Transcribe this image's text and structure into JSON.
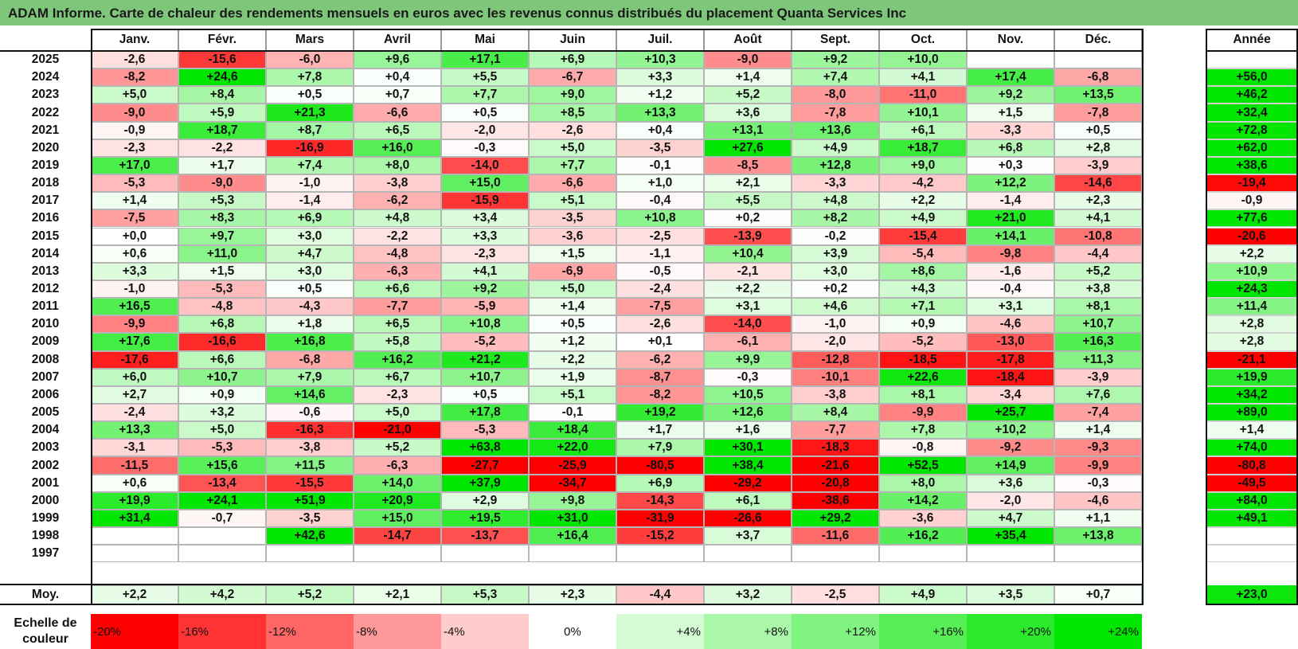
{
  "title": "ADAM Informe. Carte de chaleur des rendements mensuels en euros avec les revenus connus distribués du placement Quanta Services Inc",
  "chart_data": {
    "type": "heatmap",
    "title": "ADAM Informe. Carte de chaleur des rendements mensuels en euros avec les revenus connus distribués du placement Quanta Services Inc",
    "columns": [
      "Janv.",
      "Févr.",
      "Mars",
      "Avril",
      "Mai",
      "Juin",
      "Juil.",
      "Août",
      "Sept.",
      "Oct.",
      "Nov.",
      "Déc."
    ],
    "annual_header": "Année",
    "rows": [
      {
        "year": "2025",
        "values": [
          "-2,6",
          "-15,6",
          "-6,0",
          "+9,6",
          "+17,1",
          "+6,9",
          "+10,3",
          "-9,0",
          "+9,2",
          "+10,0",
          "",
          ""
        ],
        "annual": ""
      },
      {
        "year": "2024",
        "values": [
          "-8,2",
          "+24,6",
          "+7,8",
          "+0,4",
          "+5,5",
          "-6,7",
          "+3,3",
          "+1,4",
          "+7,4",
          "+4,1",
          "+17,4",
          "-6,8"
        ],
        "annual": "+56,0"
      },
      {
        "year": "2023",
        "values": [
          "+5,0",
          "+8,4",
          "+0,5",
          "+0,7",
          "+7,7",
          "+9,0",
          "+1,2",
          "+5,2",
          "-8,0",
          "-11,0",
          "+9,2",
          "+13,5"
        ],
        "annual": "+46,2"
      },
      {
        "year": "2022",
        "values": [
          "-9,0",
          "+5,9",
          "+21,3",
          "-6,6",
          "+0,5",
          "+8,5",
          "+13,3",
          "+3,6",
          "-7,8",
          "+10,1",
          "+1,5",
          "-7,8"
        ],
        "annual": "+32,4"
      },
      {
        "year": "2021",
        "values": [
          "-0,9",
          "+18,7",
          "+8,7",
          "+6,5",
          "-2,0",
          "-2,6",
          "+0,4",
          "+13,1",
          "+13,6",
          "+6,1",
          "-3,3",
          "+0,5"
        ],
        "annual": "+72,8"
      },
      {
        "year": "2020",
        "values": [
          "-2,3",
          "-2,2",
          "-16,9",
          "+16,0",
          "-0,3",
          "+5,0",
          "-3,5",
          "+27,6",
          "+4,9",
          "+18,7",
          "+6,8",
          "+2,8"
        ],
        "annual": "+62,0"
      },
      {
        "year": "2019",
        "values": [
          "+17,0",
          "+1,7",
          "+7,4",
          "+8,0",
          "-14,0",
          "+7,7",
          "-0,1",
          "-8,5",
          "+12,8",
          "+9,0",
          "+0,3",
          "-3,9"
        ],
        "annual": "+38,6"
      },
      {
        "year": "2018",
        "values": [
          "-5,3",
          "-9,0",
          "-1,0",
          "-3,8",
          "+15,0",
          "-6,6",
          "+1,0",
          "+2,1",
          "-3,3",
          "-4,2",
          "+12,2",
          "-14,6"
        ],
        "annual": "-19,4"
      },
      {
        "year": "2017",
        "values": [
          "+1,4",
          "+5,3",
          "-1,4",
          "-6,2",
          "-15,9",
          "+5,1",
          "-0,4",
          "+5,5",
          "+4,8",
          "+2,2",
          "-1,4",
          "+2,3"
        ],
        "annual": "-0,9"
      },
      {
        "year": "2016",
        "values": [
          "-7,5",
          "+8,3",
          "+6,9",
          "+4,8",
          "+3,4",
          "-3,5",
          "+10,8",
          "+0,2",
          "+8,2",
          "+4,9",
          "+21,0",
          "+4,1"
        ],
        "annual": "+77,6"
      },
      {
        "year": "2015",
        "values": [
          "+0,0",
          "+9,7",
          "+3,0",
          "-2,2",
          "+3,3",
          "-3,6",
          "-2,5",
          "-13,9",
          "-0,2",
          "-15,4",
          "+14,1",
          "-10,8"
        ],
        "annual": "-20,6"
      },
      {
        "year": "2014",
        "values": [
          "+0,6",
          "+11,0",
          "+4,7",
          "-4,8",
          "-2,3",
          "+1,5",
          "-1,1",
          "+10,4",
          "+3,9",
          "-5,4",
          "-9,8",
          "-4,4"
        ],
        "annual": "+2,2"
      },
      {
        "year": "2013",
        "values": [
          "+3,3",
          "+1,5",
          "+3,0",
          "-6,3",
          "+4,1",
          "-6,9",
          "-0,5",
          "-2,1",
          "+3,0",
          "+8,6",
          "-1,6",
          "+5,2"
        ],
        "annual": "+10,9"
      },
      {
        "year": "2012",
        "values": [
          "-1,0",
          "-5,3",
          "+0,5",
          "+6,6",
          "+9,2",
          "+5,0",
          "-2,4",
          "+2,2",
          "+0,2",
          "+4,3",
          "-0,4",
          "+3,8"
        ],
        "annual": "+24,3"
      },
      {
        "year": "2011",
        "values": [
          "+16,5",
          "-4,8",
          "-4,3",
          "-7,7",
          "-5,9",
          "+1,4",
          "-7,5",
          "+3,1",
          "+4,6",
          "+7,1",
          "+3,1",
          "+8,1"
        ],
        "annual": "+11,4"
      },
      {
        "year": "2010",
        "values": [
          "-9,9",
          "+6,8",
          "+1,8",
          "+6,5",
          "+10,8",
          "+0,5",
          "-2,6",
          "-14,0",
          "-1,0",
          "+0,9",
          "-4,6",
          "+10,7"
        ],
        "annual": "+2,8"
      },
      {
        "year": "2009",
        "values": [
          "+17,6",
          "-16,6",
          "+16,8",
          "+5,8",
          "-5,2",
          "+1,2",
          "+0,1",
          "-6,1",
          "-2,0",
          "-5,2",
          "-13,0",
          "+16,3"
        ],
        "annual": "+2,8"
      },
      {
        "year": "2008",
        "values": [
          "-17,6",
          "+6,6",
          "-6,8",
          "+16,2",
          "+21,2",
          "+2,2",
          "-6,2",
          "+9,9",
          "-12,8",
          "-18,5",
          "-17,8",
          "+11,3"
        ],
        "annual": "-21,1"
      },
      {
        "year": "2007",
        "values": [
          "+6,0",
          "+10,7",
          "+7,9",
          "+6,7",
          "+10,7",
          "+1,9",
          "-8,7",
          "-0,3",
          "-10,1",
          "+22,6",
          "-18,4",
          "-3,9"
        ],
        "annual": "+19,9"
      },
      {
        "year": "2006",
        "values": [
          "+2,7",
          "+0,9",
          "+14,6",
          "-2,3",
          "+0,5",
          "+5,1",
          "-8,2",
          "+10,5",
          "-3,8",
          "+8,1",
          "-3,4",
          "+7,6"
        ],
        "annual": "+34,2"
      },
      {
        "year": "2005",
        "values": [
          "-2,4",
          "+3,2",
          "-0,6",
          "+5,0",
          "+17,8",
          "-0,1",
          "+19,2",
          "+12,6",
          "+8,4",
          "-9,9",
          "+25,7",
          "-7,4"
        ],
        "annual": "+89,0"
      },
      {
        "year": "2004",
        "values": [
          "+13,3",
          "+5,0",
          "-16,3",
          "-21,0",
          "-5,3",
          "+18,4",
          "+1,7",
          "+1,6",
          "-7,7",
          "+7,8",
          "+10,2",
          "+1,4"
        ],
        "annual": "+1,4"
      },
      {
        "year": "2003",
        "values": [
          "-3,1",
          "-5,3",
          "-3,8",
          "+5,2",
          "+63,8",
          "+22,0",
          "+7,9",
          "+30,1",
          "-18,3",
          "-0,8",
          "-9,2",
          "-9,3"
        ],
        "annual": "+74,0"
      },
      {
        "year": "2002",
        "values": [
          "-11,5",
          "+15,6",
          "+11,5",
          "-6,3",
          "-27,7",
          "-25,9",
          "-80,5",
          "+38,4",
          "-21,6",
          "+52,5",
          "+14,9",
          "-9,9"
        ],
        "annual": "-80,8"
      },
      {
        "year": "2001",
        "values": [
          "+0,6",
          "-13,4",
          "-15,5",
          "+14,0",
          "+37,9",
          "-34,7",
          "+6,9",
          "-29,2",
          "-20,8",
          "+8,0",
          "+3,6",
          "-0,3"
        ],
        "annual": "-49,5"
      },
      {
        "year": "2000",
        "values": [
          "+19,9",
          "+24,1",
          "+51,9",
          "+20,9",
          "+2,9",
          "+9,8",
          "-14,3",
          "+6,1",
          "-38,6",
          "+14,2",
          "-2,0",
          "-4,6"
        ],
        "annual": "+84,0"
      },
      {
        "year": "1999",
        "values": [
          "+31,4",
          "-0,7",
          "-3,5",
          "+15,0",
          "+19,5",
          "+31,0",
          "-31,9",
          "-26,6",
          "+29,2",
          "-3,6",
          "+4,7",
          "+1,1"
        ],
        "annual": "+49,1"
      },
      {
        "year": "1998",
        "values": [
          "",
          "",
          "+42,6",
          "-14,7",
          "-13,7",
          "+16,4",
          "-15,2",
          "+3,7",
          "-11,6",
          "+16,2",
          "+35,4",
          "+13,8"
        ],
        "annual": ""
      },
      {
        "year": "1997",
        "values": [
          "",
          "",
          "",
          "",
          "",
          "",
          "",
          "",
          "",
          "",
          "",
          ""
        ],
        "annual": ""
      }
    ],
    "average": {
      "label": "Moy.",
      "values": [
        "+2,2",
        "+4,2",
        "+5,2",
        "+2,1",
        "+5,3",
        "+2,3",
        "-4,4",
        "+3,2",
        "-2,5",
        "+4,9",
        "+3,5",
        "+0,7"
      ],
      "annual": "+23,0"
    },
    "scale": {
      "label_line1": "Echelle de",
      "label_line2": "couleur",
      "stops": [
        {
          "label": "-20%",
          "value": -20
        },
        {
          "label": "-16%",
          "value": -16
        },
        {
          "label": "-12%",
          "value": -12
        },
        {
          "label": "-8%",
          "value": -8
        },
        {
          "label": "-4%",
          "value": -4
        },
        {
          "label": "0%",
          "value": 0
        },
        {
          "label": "+4%",
          "value": 4
        },
        {
          "label": "+8%",
          "value": 8
        },
        {
          "label": "+12%",
          "value": 12
        },
        {
          "label": "+16%",
          "value": 16
        },
        {
          "label": "+20%",
          "value": 20
        },
        {
          "label": "+24%",
          "value": 24
        }
      ]
    },
    "colors": {
      "negative": "#ff0000",
      "neutral": "#ffffff",
      "positive": "#00e600",
      "title_bar": "#7dc67a"
    },
    "color_range": [
      -20,
      24
    ]
  }
}
